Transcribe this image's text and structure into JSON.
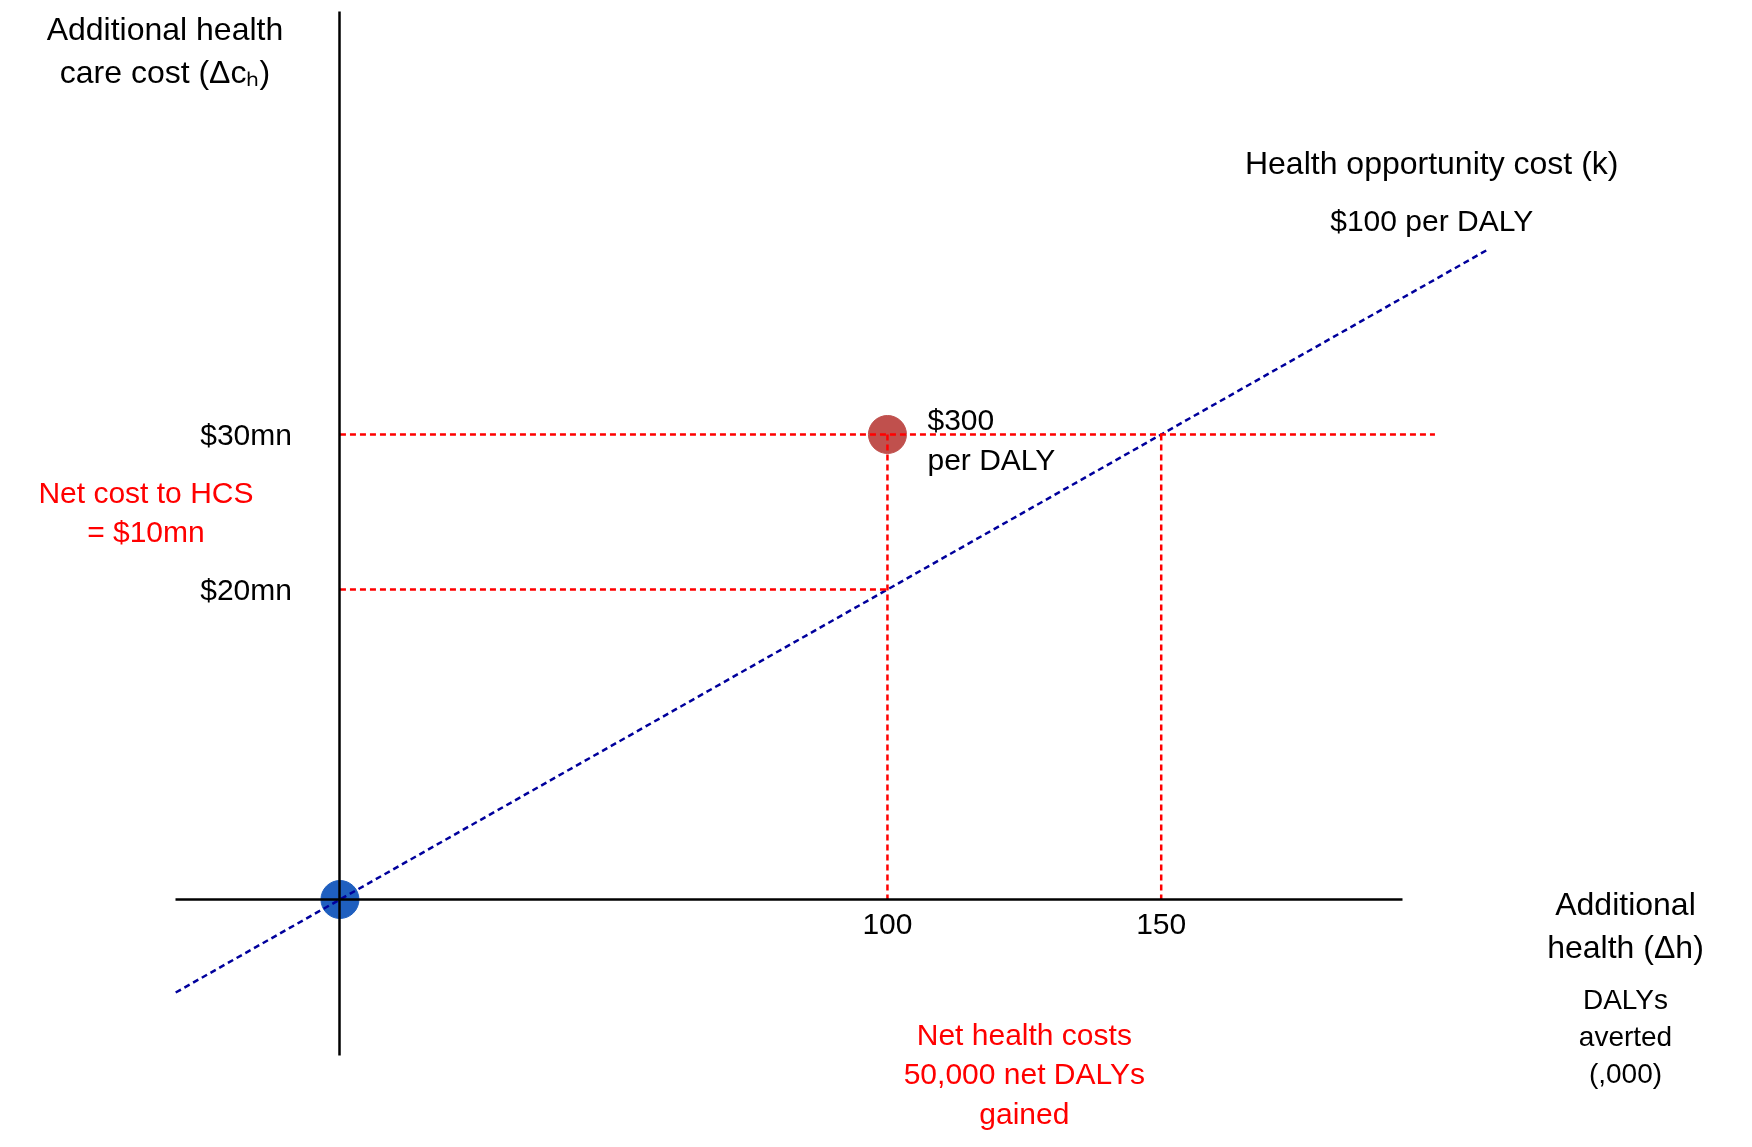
{
  "chart_data": {
    "type": "line",
    "xlabel": "Additional health (Δh)",
    "ylabel": "Additional health care cost (Δcₕ)",
    "xlim": [
      -62,
      258
    ],
    "ylim": [
      -16,
      58
    ],
    "xticks": [
      100,
      150
    ],
    "yticks": [
      {
        "value": 20,
        "label": "$20mn"
      },
      {
        "value": 30,
        "label": "$30mn"
      }
    ],
    "series": [
      {
        "name": "Health opportunity cost (k)",
        "color": "#00009c",
        "line_style": "dashed",
        "x": [
          -30,
          210
        ],
        "values": [
          -6,
          42
        ]
      },
      {
        "color": "#ff0000",
        "line_style": "dashed",
        "x": [
          0,
          200
        ],
        "values": [
          30,
          30
        ]
      },
      {
        "color": "#ff0000",
        "line_style": "dashed",
        "x": [
          0,
          100
        ],
        "values": [
          20,
          20
        ]
      },
      {
        "color": "#ff0000",
        "line_style": "dashed",
        "x": [
          100,
          100
        ],
        "values": [
          30,
          0
        ]
      },
      {
        "color": "#ff0000",
        "line_style": "dashed",
        "x": [
          150,
          150
        ],
        "values": [
          30,
          0
        ]
      },
      {
        "type": "scatter",
        "color": "#c0504d",
        "x": [
          100
        ],
        "values": [
          30
        ]
      },
      {
        "type": "scatter",
        "color": "#1f5fbf",
        "x": [
          0
        ],
        "values": [
          0
        ]
      }
    ],
    "annotations": [
      {
        "text": "$300 per DALY",
        "x": 100,
        "y": 30
      },
      {
        "text": "$100 per DALY",
        "x": 210,
        "y": 42
      },
      "Net cost to HCS = $10mn",
      "Net health costs 50,000 net DALYs gained",
      "DALYs averted (,000)"
    ]
  }
}
